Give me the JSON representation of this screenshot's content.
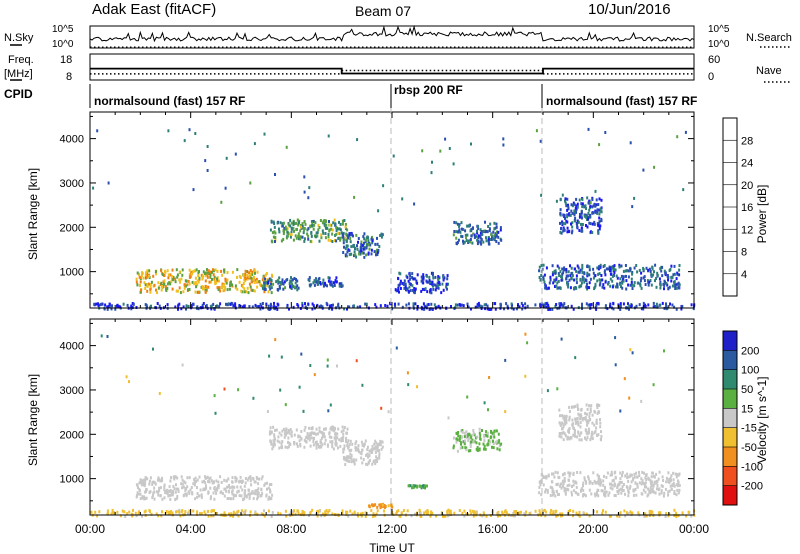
{
  "header": {
    "station": "Adak East (fitACF)",
    "beam": "Beam 07",
    "date": "10/Jun/2016"
  },
  "side_labels": {
    "nsky": "N.Sky",
    "nsearch": "N.Search",
    "freq_line1": "Freq.",
    "freq_line2": "[MHz]",
    "nave": "Nave",
    "cpid": "CPID"
  },
  "noise_panel": {
    "ytick_top": "10^5",
    "ytick_bottom": "10^0",
    "ytick_top_right": "10^5",
    "ytick_bottom_right": "10^0"
  },
  "freq_panel": {
    "left_ticks": [
      "18",
      "8"
    ],
    "right_ticks": [
      "60",
      "0"
    ],
    "freq_segments": [
      {
        "start_h": 0,
        "end_h": 10,
        "mhz": 12.4
      },
      {
        "start_h": 10,
        "end_h": 18,
        "mhz": 10.5
      },
      {
        "start_h": 18,
        "end_h": 24,
        "mhz": 12.4
      }
    ],
    "nave_segments": [
      {
        "start_h": 0,
        "end_h": 10,
        "value": 14
      },
      {
        "start_h": 10,
        "end_h": 18,
        "value": 22
      },
      {
        "start_h": 18,
        "end_h": 24,
        "value": 14
      }
    ]
  },
  "cpid_segments": [
    {
      "label": "normalsound (fast) 157 RF",
      "start_h": 0,
      "end_h": 12
    },
    {
      "label": "rbsp 200 RF",
      "start_h": 12,
      "end_h": 18
    },
    {
      "label": "normalsound (fast) 157 RF",
      "start_h": 18,
      "end_h": 24
    }
  ],
  "axes": {
    "xlabel": "Time UT",
    "x_ticks": [
      "00:00",
      "04:00",
      "08:00",
      "12:00",
      "16:00",
      "20:00",
      "00:00"
    ],
    "ylabel": "Slant Range [km]",
    "y_ticks": [
      "1000",
      "2000",
      "3000",
      "4000"
    ]
  },
  "power_colorbar": {
    "title": "Power [dB]",
    "labels": [
      "4",
      "8",
      "12",
      "16",
      "20",
      "24",
      "28"
    ],
    "colors": [
      "#1a1af0",
      "#2a4fb0",
      "#2f7f78",
      "#5aa040",
      "#f0c020",
      "#f08010",
      "#e03018",
      "#e00000"
    ]
  },
  "velocity_colorbar": {
    "title": "Velocity [m s^-1]",
    "labels": [
      "200",
      "100",
      "50",
      "15",
      "-15",
      "-50",
      "-100",
      "-200"
    ],
    "colors": [
      "#2020c8",
      "#2c5aa0",
      "#2f8a70",
      "#5ab040",
      "#c8c8c8",
      "#f0c030",
      "#f09020",
      "#f05020",
      "#e01010"
    ]
  },
  "chart_data": {
    "type": "heatmap",
    "title": "Adak East (fitACF) Beam 07 10/Jun/2016",
    "xlabel": "Time UT",
    "ylabel": "Slant Range [km]",
    "xlim_hours": [
      0,
      24
    ],
    "ylim_km": [
      180,
      4600
    ],
    "grid": false,
    "dashed_lines_at_hours": [
      12,
      18
    ],
    "power_clusters_db": [
      {
        "t0": 1.8,
        "t1": 7.2,
        "r0": 560,
        "r1": 1080,
        "value": 18
      },
      {
        "t0": 7.1,
        "t1": 10.2,
        "r0": 1700,
        "r1": 2200,
        "value": 12
      },
      {
        "t0": 10.0,
        "t1": 11.6,
        "r0": 1350,
        "r1": 1900,
        "value": 8
      },
      {
        "t0": 6.8,
        "t1": 8.3,
        "r0": 620,
        "r1": 900,
        "value": 8
      },
      {
        "t0": 8.6,
        "t1": 10.0,
        "r0": 700,
        "r1": 900,
        "value": 6
      },
      {
        "t0": 12.1,
        "t1": 14.2,
        "r0": 550,
        "r1": 1000,
        "value": 5
      },
      {
        "t0": 14.4,
        "t1": 16.3,
        "r0": 1650,
        "r1": 2150,
        "value": 8
      },
      {
        "t0": 17.8,
        "t1": 23.4,
        "r0": 640,
        "r1": 1180,
        "value": 7
      },
      {
        "t0": 18.6,
        "t1": 20.3,
        "r0": 1900,
        "r1": 2700,
        "value": 6
      },
      {
        "t0": 0.0,
        "t1": 24.0,
        "r0": 180,
        "r1": 320,
        "value": 4
      }
    ],
    "velocity_clusters_ms": [
      {
        "t0": 1.8,
        "t1": 7.2,
        "r0": 560,
        "r1": 1080,
        "value": 0
      },
      {
        "t0": 7.1,
        "t1": 10.2,
        "r0": 1700,
        "r1": 2200,
        "value": 0
      },
      {
        "t0": 10.0,
        "t1": 11.6,
        "r0": 1350,
        "r1": 1900,
        "value": 0
      },
      {
        "t0": 12.6,
        "t1": 13.4,
        "r0": 820,
        "r1": 880,
        "value": 40
      },
      {
        "t0": 14.4,
        "t1": 16.3,
        "r0": 1650,
        "r1": 2150,
        "value": 20
      },
      {
        "t0": 17.8,
        "t1": 23.4,
        "r0": 640,
        "r1": 1180,
        "value": 0
      },
      {
        "t0": 18.6,
        "t1": 20.3,
        "r0": 1900,
        "r1": 2700,
        "value": 0
      },
      {
        "t0": 11.0,
        "t1": 12.0,
        "r0": 380,
        "r1": 460,
        "value": -60
      },
      {
        "t0": 0.0,
        "t1": 24.0,
        "r0": 180,
        "r1": 320,
        "value": -30
      }
    ]
  }
}
